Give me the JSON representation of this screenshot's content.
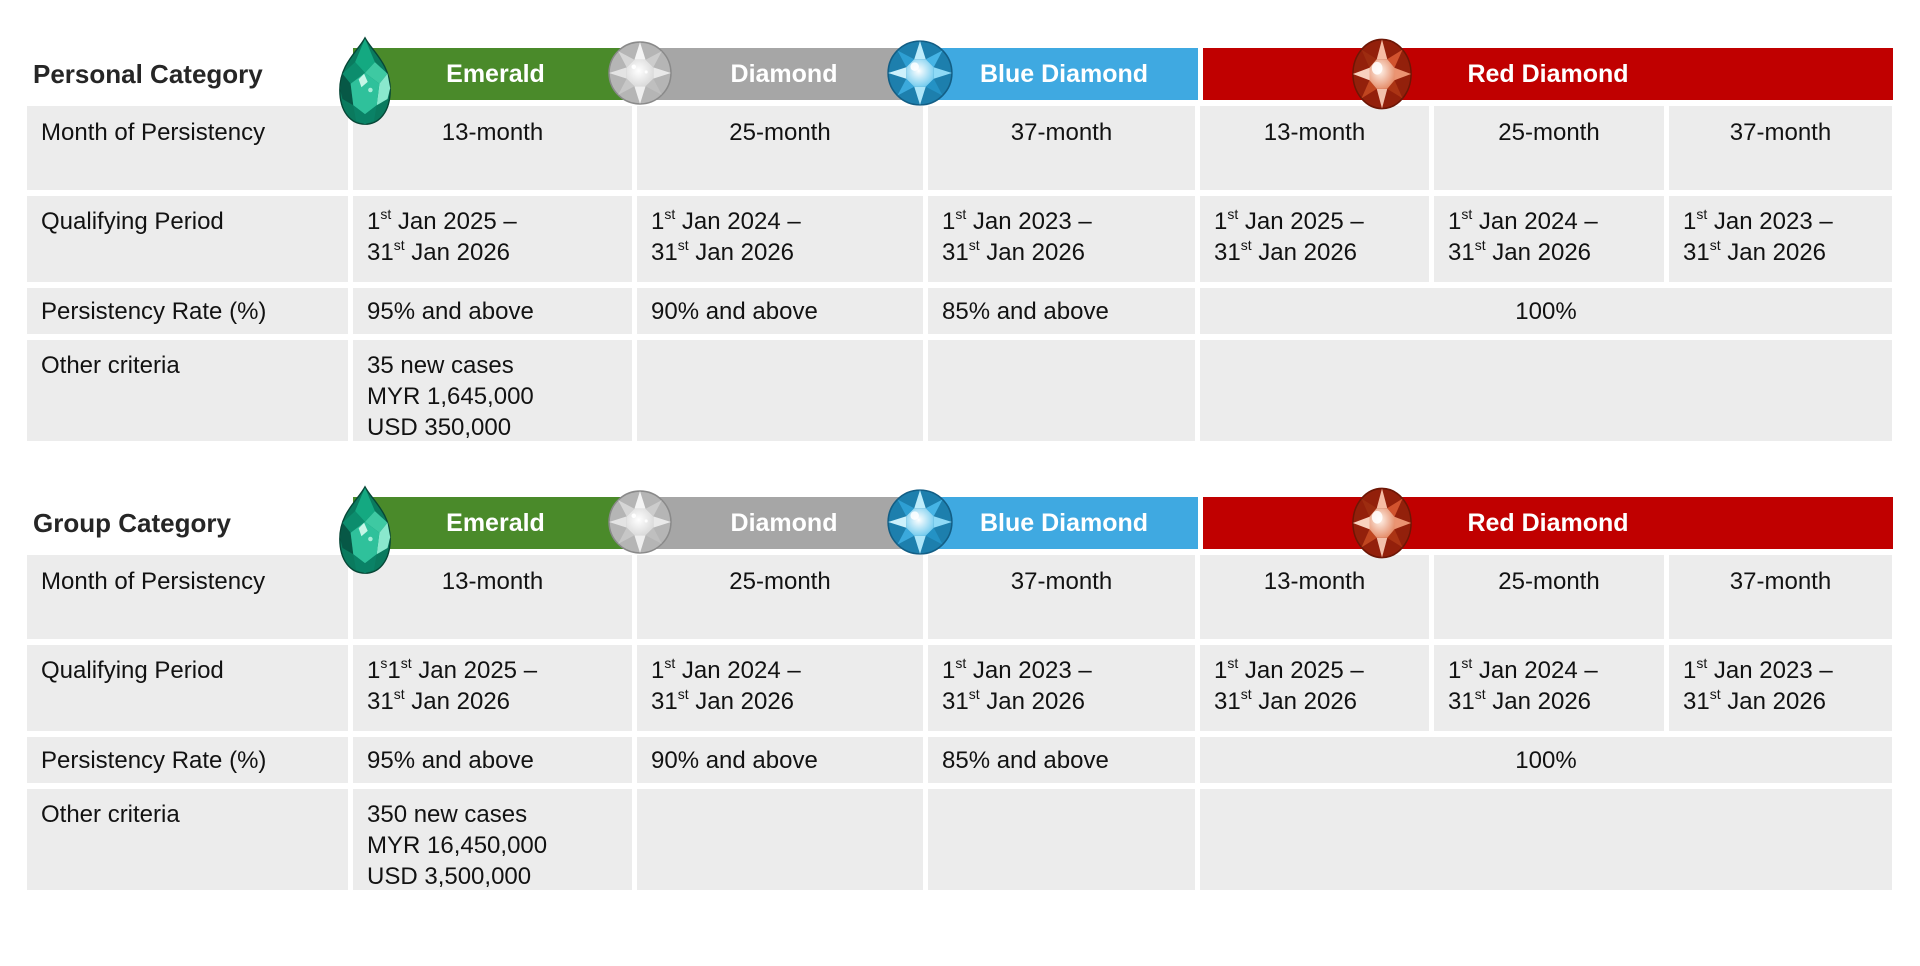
{
  "colors": {
    "emerald_bar": "#4a8a2a",
    "diamond_bar": "#a6a6a6",
    "blue_diamond_bar": "#3fa9e1",
    "red_diamond_bar": "#c00000",
    "cell_background": "#ececec",
    "bar_text": "#ffffff",
    "body_text": "#121212"
  },
  "tables": [
    {
      "title": "Personal Category",
      "tiers": [
        {
          "name": "Emerald",
          "gem": "emerald-gem",
          "color": "#4a8a2a",
          "columns": 1
        },
        {
          "name": "Diamond",
          "gem": "white-diamond-gem",
          "color": "#a6a6a6",
          "columns": 1
        },
        {
          "name": "Blue Diamond",
          "gem": "blue-diamond-gem",
          "color": "#3fa9e1",
          "columns": 1
        },
        {
          "name": "Red Diamond",
          "gem": "red-diamond-gem",
          "color": "#c00000",
          "columns": 3
        }
      ],
      "row_labels": [
        "Month of Persistency",
        "Qualifying Period",
        "Persistency Rate (%)",
        "Other criteria"
      ],
      "months": [
        "13-month",
        "25-month",
        "37-month",
        "13-month",
        "25-month",
        "37-month"
      ],
      "qualifying_periods": [
        [
          "1^st Jan 2025 –",
          "31^st Jan 2026"
        ],
        [
          "1^st Jan 2024 –",
          "31^st Jan 2026"
        ],
        [
          "1^st Jan 2023 –",
          "31^st Jan 2026"
        ],
        [
          "1^st Jan 2025 –",
          "31^st Jan 2026"
        ],
        [
          "1^st Jan 2024 –",
          "31^st Jan 2026"
        ],
        [
          "1^st Jan 2023 –",
          "31^st Jan 2026"
        ]
      ],
      "persistency_rates": [
        "95% and above",
        "90% and above",
        "85% and above"
      ],
      "persistency_rate_merged": "100%",
      "other_criteria": [
        "35 new cases",
        "MYR 1,645,000",
        "USD 350,000"
      ]
    },
    {
      "title": "Group Category",
      "tiers": [
        {
          "name": "Emerald",
          "gem": "emerald-gem",
          "color": "#4a8a2a",
          "columns": 1
        },
        {
          "name": "Diamond",
          "gem": "white-diamond-gem",
          "color": "#a6a6a6",
          "columns": 1
        },
        {
          "name": "Blue Diamond",
          "gem": "blue-diamond-gem",
          "color": "#3fa9e1",
          "columns": 1
        },
        {
          "name": "Red Diamond",
          "gem": "red-diamond-gem",
          "color": "#c00000",
          "columns": 3
        }
      ],
      "row_labels": [
        "Month of Persistency",
        "Qualifying Period",
        "Persistency Rate (%)",
        "Other criteria"
      ],
      "months": [
        "13-month",
        "25-month",
        "37-month",
        "13-month",
        "25-month",
        "37-month"
      ],
      "qualifying_periods": [
        [
          "1^s1^st Jan 2025 –",
          "31^st Jan 2026"
        ],
        [
          "1^st Jan 2024 –",
          "31^st Jan 2026"
        ],
        [
          "1^st Jan 2023 –",
          "31^st Jan 2026"
        ],
        [
          "1^st Jan 2025 –",
          "31^st Jan 2026"
        ],
        [
          "1^st Jan 2024 –",
          "31^st Jan 2026"
        ],
        [
          "1^st Jan 2023 –",
          "31^st Jan 2026"
        ]
      ],
      "persistency_rates": [
        "95% and above",
        "90% and above",
        "85% and above"
      ],
      "persistency_rate_merged": "100%",
      "other_criteria": [
        "350 new cases",
        "MYR 16,450,000",
        "USD 3,500,000"
      ]
    }
  ]
}
